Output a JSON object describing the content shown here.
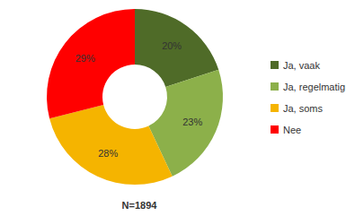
{
  "chart_data": {
    "type": "pie",
    "title": "N=1894",
    "categories": [
      "Ja, vaak",
      "Ja, regelmatig",
      "Ja, soms",
      "Nee"
    ],
    "values": [
      20,
      23,
      28,
      29
    ],
    "value_labels": [
      "20%",
      "23%",
      "28%",
      "29%"
    ],
    "colors": [
      "#4f6b28",
      "#8cb04a",
      "#f5b400",
      "#ff0000"
    ],
    "data_labels": true,
    "legend": "right"
  }
}
